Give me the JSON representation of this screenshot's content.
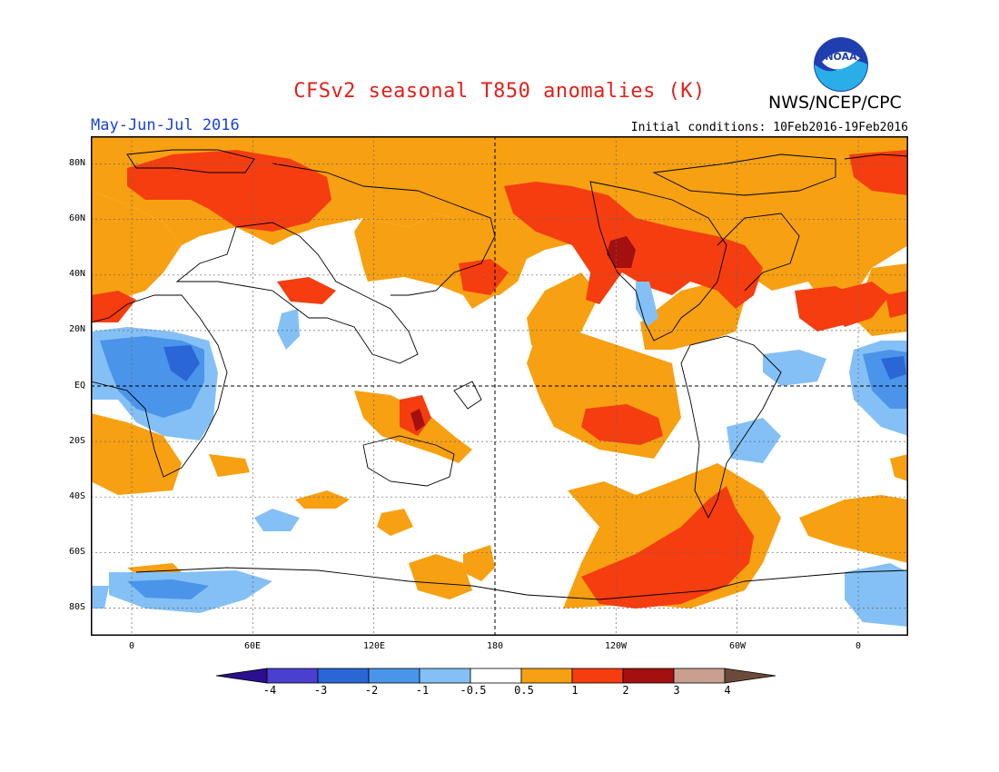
{
  "title": "CFSv2 seasonal T850 anomalies (K)",
  "period": "May-Jun-Jul 2016",
  "initial_conditions": "Initial conditions: 10Feb2016-19Feb2016",
  "agency": "NWS/NCEP/CPC",
  "logo_text": "NOAA",
  "lat_labels": [
    "80N",
    "60N",
    "40N",
    "20N",
    "EQ",
    "20S",
    "40S",
    "60S",
    "80S"
  ],
  "lon_labels": [
    "0",
    "60E",
    "120E",
    "180",
    "120W",
    "60W",
    "0"
  ],
  "colorbar": {
    "labels": [
      "-4",
      "-3",
      "-2",
      "-1",
      "-0.5",
      "0.5",
      "1",
      "2",
      "3",
      "4"
    ],
    "colors": [
      "#2b0f8f",
      "#4a3fcf",
      "#2a66d6",
      "#4a95ea",
      "#84c0f5",
      "#ffffff",
      "#f7a012",
      "#f53d10",
      "#a40f0f",
      "#c9a090",
      "#6b4a3a"
    ]
  },
  "palette": {
    "ocean_bg": "#ffffff",
    "warm1": "#f7a012",
    "warm2": "#f53d10",
    "warm3": "#a40f0f",
    "cool1": "#84c0f5",
    "cool2": "#4a95ea",
    "cool3": "#2a66d6"
  }
}
